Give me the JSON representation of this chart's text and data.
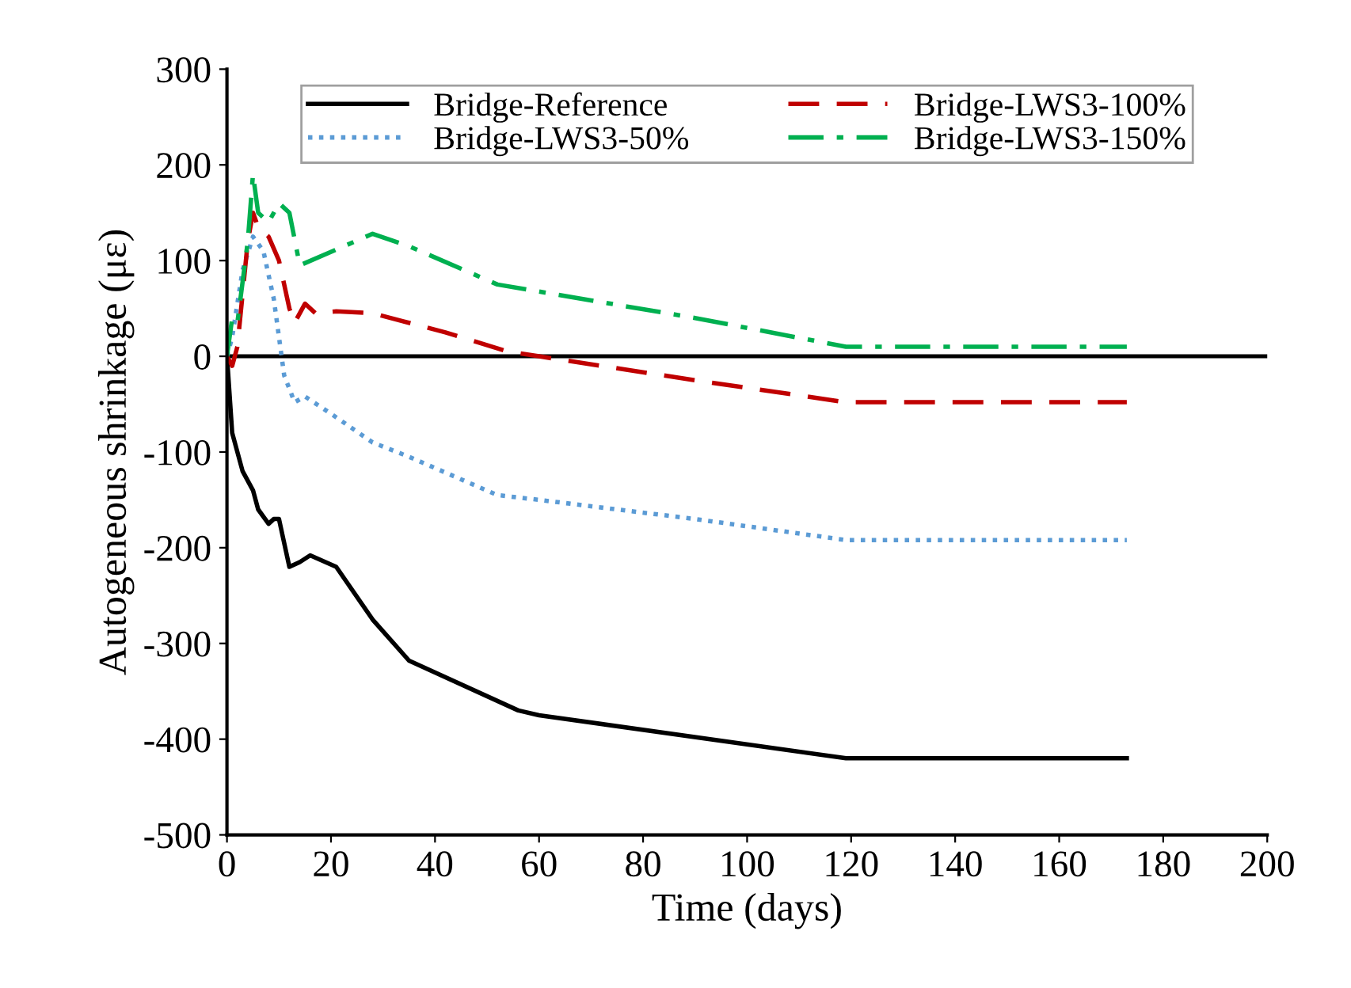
{
  "chart_data": {
    "type": "line",
    "xlabel": "Time (days)",
    "ylabel": "Autogeneous shrinkage (με)",
    "xlim": [
      0,
      200
    ],
    "xticks": [
      0,
      20,
      40,
      60,
      80,
      100,
      120,
      140,
      160,
      180,
      200
    ],
    "ylim": [
      -500,
      300
    ],
    "yticks": [
      -500,
      -400,
      -300,
      -200,
      -100,
      0,
      100,
      200,
      300
    ],
    "grid": false,
    "legend": "top",
    "marker": "none",
    "ref_lines": [
      {
        "axis": "y",
        "value": 0,
        "color": "#000000",
        "line_style": "solid"
      }
    ],
    "series": [
      {
        "name": "Bridge-Reference",
        "color": "#000000",
        "line_style": "solid",
        "x": [
          0,
          1,
          3,
          5,
          6,
          8,
          9,
          10,
          12,
          14,
          16,
          21,
          28,
          35,
          56,
          60,
          119,
          173
        ],
        "values": [
          0,
          -80,
          -120,
          -140,
          -160,
          -175,
          -170,
          -170,
          -220,
          -215,
          -208,
          -220,
          -275,
          -318,
          -370,
          -375,
          -420,
          -420
        ]
      },
      {
        "name": "Bridge-LWS3-50%",
        "color": "#5b9bd5",
        "line_style": "dotted",
        "x": [
          0,
          1,
          3,
          5,
          7,
          9,
          11,
          13,
          15,
          20,
          28,
          35,
          52,
          60,
          90,
          119,
          173
        ],
        "values": [
          0,
          20,
          90,
          125,
          110,
          60,
          -20,
          -48,
          -42,
          -60,
          -90,
          -105,
          -145,
          -150,
          -170,
          -192,
          -192
        ]
      },
      {
        "name": "Bridge-LWS3-100%",
        "color": "#c00000",
        "line_style": "dashed",
        "x": [
          0,
          1,
          2,
          4,
          5,
          6,
          8,
          10,
          12,
          13,
          15,
          17,
          21,
          28,
          42,
          54,
          60,
          90,
          119,
          173
        ],
        "values": [
          0,
          -10,
          10,
          120,
          150,
          135,
          125,
          100,
          50,
          35,
          55,
          45,
          47,
          45,
          25,
          5,
          0,
          -25,
          -48,
          -48
        ]
      },
      {
        "name": "Bridge-LWS3-150%",
        "color": "#00b050",
        "line_style": "dashdot",
        "x": [
          0,
          1,
          2,
          4,
          5,
          6,
          8,
          10,
          12,
          14,
          28,
          35,
          52,
          90,
          119,
          173
        ],
        "values": [
          0,
          40,
          35,
          120,
          190,
          150,
          140,
          160,
          150,
          95,
          128,
          115,
          75,
          40,
          10,
          10
        ]
      }
    ]
  }
}
